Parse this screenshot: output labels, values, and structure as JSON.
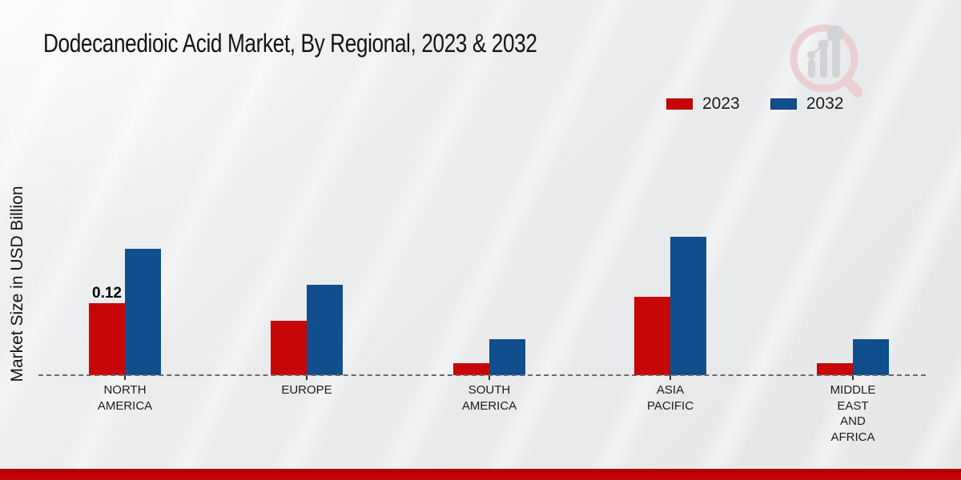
{
  "title": "Dodecanedioic Acid Market, By Regional, 2023 & 2032",
  "y_axis_label": "Market Size in USD Billion",
  "footer_bar_color": "#c40404",
  "logo": {
    "name": "magnifier-bar-chart-watermark",
    "ring_color": "#eccfd3",
    "bars_color": "#d2d3d6"
  },
  "chart_data": {
    "type": "bar",
    "title": "Dodecanedioic Acid Market, By Regional, 2023 & 2032",
    "xlabel": "",
    "ylabel": "Market Size in USD Billion",
    "ylim": [
      0,
      0.26
    ],
    "grid": false,
    "legend_position": "top-right",
    "baseline_style": "dashed",
    "categories": [
      "NORTH AMERICA",
      "EUROPE",
      "SOUTH AMERICA",
      "ASIA PACIFIC",
      "MIDDLE EAST AND AFRICA"
    ],
    "category_lines": [
      [
        "NORTH",
        "AMERICA"
      ],
      [
        "EUROPE"
      ],
      [
        "SOUTH",
        "AMERICA"
      ],
      [
        "ASIA",
        "PACIFIC"
      ],
      [
        "MIDDLE",
        "EAST",
        "AND",
        "AFRICA"
      ]
    ],
    "series": [
      {
        "name": "2023",
        "color": "#c70707",
        "values": [
          0.12,
          0.09,
          0.02,
          0.13,
          0.02
        ]
      },
      {
        "name": "2032",
        "color": "#114e8d",
        "values": [
          0.21,
          0.15,
          0.06,
          0.23,
          0.06
        ]
      }
    ],
    "data_labels": [
      {
        "series": "2023",
        "category": "NORTH AMERICA",
        "text": "0.12"
      }
    ]
  }
}
